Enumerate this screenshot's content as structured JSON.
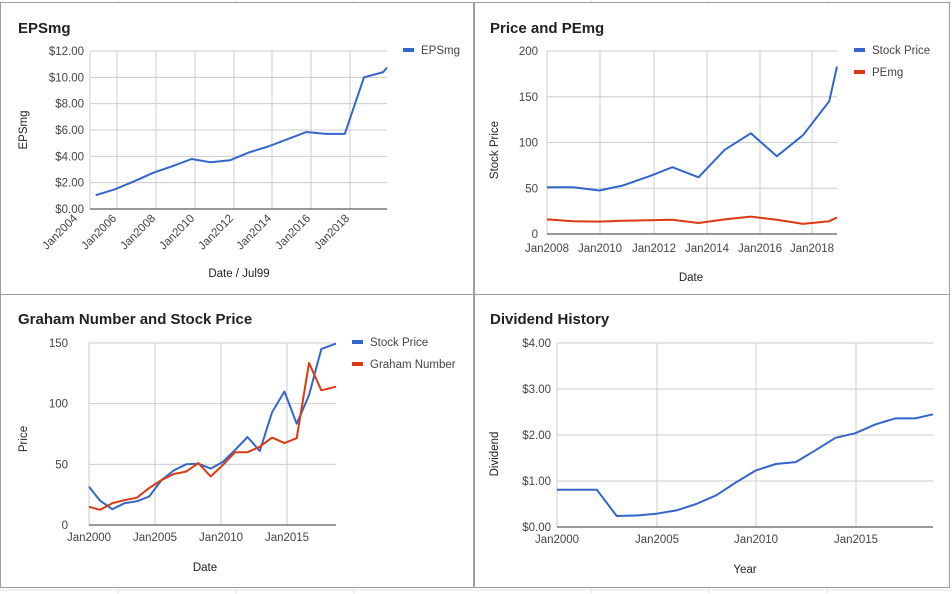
{
  "chart_data": [
    {
      "type": "line",
      "title": "EPSmg",
      "xlabel": "Date / Jul99",
      "ylabel": "EPSmg",
      "x_ticks": [
        "Jan2004",
        "Jan2006",
        "Jan2008",
        "Jan2010",
        "Jan2012",
        "Jan2014",
        "Jan2016",
        "Jan2018"
      ],
      "y_ticks": [
        "$0.00",
        "$2.00",
        "$4.00",
        "$6.00",
        "$8.00",
        "$10.00",
        "$12.00"
      ],
      "xlim": [
        2003.6,
        2019.1
      ],
      "ylim": [
        0,
        12
      ],
      "grid": true,
      "legend": "top-right",
      "series": [
        {
          "name": "EPSmg",
          "color": "#3366cc",
          "x": [
            2003.9,
            2004.9,
            2005.9,
            2006.9,
            2007.9,
            2008.9,
            2009.9,
            2010.9,
            2011.9,
            2012.9,
            2013.9,
            2014.9,
            2015.9,
            2016.9,
            2017.9,
            2018.9,
            2019.1
          ],
          "y": [
            1.05,
            1.5,
            2.1,
            2.75,
            3.25,
            3.8,
            3.55,
            3.7,
            4.3,
            4.75,
            5.3,
            5.85,
            5.7,
            5.7,
            10.0,
            10.4,
            10.75
          ]
        }
      ]
    },
    {
      "type": "line",
      "title": "Price and PEmg",
      "xlabel": "Date",
      "ylabel": "Stock Price",
      "x_ticks": [
        "Jan2008",
        "Jan2010",
        "Jan2012",
        "Jan2014",
        "Jan2016",
        "Jan2018"
      ],
      "y_ticks": [
        "0",
        "50",
        "100",
        "150",
        "200"
      ],
      "xlim": [
        2008,
        2019.1
      ],
      "ylim": [
        0,
        200
      ],
      "grid": true,
      "legend": "top-right",
      "series": [
        {
          "name": "Stock Price",
          "color": "#3366cc",
          "x": [
            2008,
            2009,
            2010,
            2010.9,
            2011.9,
            2012.8,
            2013.8,
            2014.8,
            2015.8,
            2016.8,
            2017.8,
            2018.8,
            2019.1
          ],
          "y": [
            51,
            51,
            47.5,
            53,
            63,
            73,
            62,
            92,
            110,
            85,
            108,
            145,
            183
          ]
        },
        {
          "name": "PEmg",
          "color": "#dc3912",
          "x": [
            2008,
            2009,
            2010,
            2010.9,
            2011.9,
            2012.8,
            2013.8,
            2014.8,
            2015.8,
            2016.8,
            2017.8,
            2018.8,
            2019.1
          ],
          "y": [
            16,
            14,
            13.5,
            14.5,
            15,
            15.5,
            12,
            16,
            19,
            15.5,
            11,
            14,
            18
          ]
        }
      ]
    },
    {
      "type": "line",
      "title": "Graham Number and Stock Price",
      "xlabel": "Date",
      "ylabel": "Price",
      "x_ticks": [
        "Jan2000",
        "Jan2005",
        "Jan2010",
        "Jan2015"
      ],
      "y_ticks": [
        "0",
        "50",
        "100",
        "150"
      ],
      "xlim": [
        1999.1,
        2019.2
      ],
      "ylim": [
        0,
        150
      ],
      "grid": true,
      "legend": "top-right",
      "series": [
        {
          "name": "Stock Price",
          "color": "#3366cc",
          "x": [
            1999.1,
            2000,
            2001,
            2002,
            2003,
            2004,
            2005,
            2006,
            2007,
            2008,
            2009,
            2010,
            2011,
            2012,
            2013,
            2014,
            2015,
            2016,
            2017,
            2018,
            2019.2
          ],
          "y": [
            31.5,
            20,
            13,
            18,
            19.5,
            23.5,
            37,
            45,
            50,
            50.5,
            46.5,
            52,
            62,
            72.5,
            61,
            93,
            110,
            83.5,
            107,
            145,
            149.5
          ]
        },
        {
          "name": "Graham Number",
          "color": "#dc3912",
          "x": [
            1999.1,
            2000,
            2001,
            2002,
            2003,
            2004,
            2005,
            2006,
            2007,
            2008,
            2009,
            2010,
            2011,
            2012,
            2013,
            2014,
            2015,
            2016,
            2017,
            2018,
            2019.2
          ],
          "y": [
            15,
            12.5,
            18,
            20.5,
            22.5,
            30.5,
            37,
            42,
            44,
            51,
            40,
            49.5,
            60,
            60,
            64.5,
            72,
            67.5,
            71.5,
            133.5,
            111,
            114
          ]
        }
      ]
    },
    {
      "type": "line",
      "title": "Dividend History",
      "xlabel": "Year",
      "ylabel": "Dividend",
      "x_ticks": [
        "Jan2000",
        "Jan2005",
        "Jan2010",
        "Jan2015"
      ],
      "y_ticks": [
        "$0.00",
        "$1.00",
        "$2.00",
        "$3.00",
        "$4.00"
      ],
      "xlim": [
        2000,
        2018.9
      ],
      "ylim": [
        0,
        4
      ],
      "grid": true,
      "legend": "none",
      "series": [
        {
          "name": "",
          "color": "#3366cc",
          "x": [
            2000,
            2001,
            2002,
            2003,
            2004,
            2005,
            2006,
            2007,
            2008,
            2009,
            2010,
            2011,
            2012,
            2013,
            2014,
            2015,
            2016,
            2017,
            2018,
            2018.9
          ],
          "y": [
            0.81,
            0.81,
            0.81,
            0.24,
            0.25,
            0.29,
            0.36,
            0.5,
            0.69,
            0.97,
            1.23,
            1.37,
            1.41,
            1.67,
            1.94,
            2.04,
            2.23,
            2.36,
            2.36,
            2.45
          ]
        }
      ]
    }
  ]
}
